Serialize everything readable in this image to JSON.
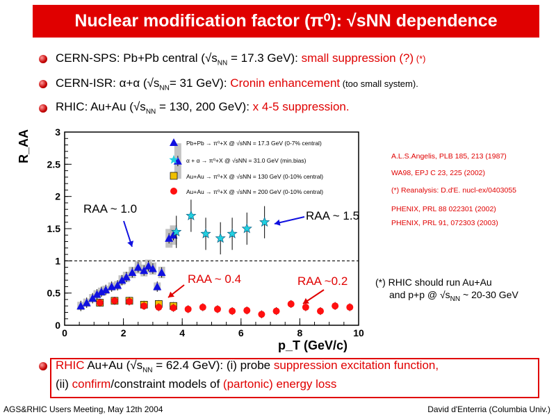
{
  "slide": {
    "title": "Nuclear modification factor (π⁰):  √sNN dependence",
    "bullets": [
      {
        "label": "CERN-SPS",
        "text": ": Pb+Pb central (√s",
        "sub": "NN",
        "text2": " = 17.3 GeV): ",
        "red": "small suppression (?)",
        "tail": " (*)"
      },
      {
        "label": "CERN-ISR",
        "text": ": α+α (√s",
        "sub": "NN",
        "text2": "= 31 GeV): ",
        "red": "Cronin enhancement",
        "tail": " (too small system)."
      },
      {
        "label": "RHIC",
        "text": ": Au+Au (√s",
        "sub": "NN",
        "text2": " = 130, 200 GeV): ",
        "red": "x 4-5 suppression."
      }
    ],
    "refs": [
      "A.L.S.Angelis, PLB 185, 213 (1987)",
      "WA98, EPJ C 23, 225 (2002)",
      "(*) Reanalysis: D.d'E. nucl-ex/0403055",
      "PHENIX, PRL 88 022301 (2002)",
      "PHENIX, PRL 91, 072303  (2003)"
    ],
    "note_line1": "(*) RHIC should run Au+Au",
    "note_line2": "and p+p @ √s",
    "note_sub": "NN",
    "note_line2b": " ~ 20-30 GeV",
    "bottom_line1_a": "RHIC",
    "bottom_line1_b": " Au+Au (√s",
    "bottom_line1_sub": "NN",
    "bottom_line1_c": " = 62.4 GeV): (i) probe ",
    "bottom_line1_d": "suppression excitation function,",
    "bottom_line2_a": "(ii) ",
    "bottom_line2_b": "confirm",
    "bottom_line2_c": "/constraint models of ",
    "bottom_line2_d": "(partonic) energy loss",
    "footer_left": "AGS&RHIC Users Meeting, May 12th 2004",
    "footer_right": "David d'Enterria (Columbia Univ.)"
  },
  "chart_data": {
    "type": "scatter",
    "xlabel": "p_T (GeV/c)",
    "ylabel": "R_AA",
    "xlim": [
      0,
      10
    ],
    "ylim": [
      0,
      3
    ],
    "x_ticks": [
      "0",
      "2",
      "4",
      "6",
      "8",
      "10"
    ],
    "y_ticks": [
      "0",
      "0.5",
      "1",
      "1.5",
      "2",
      "2.5",
      "3"
    ],
    "legend": [
      "Pb+Pb → π⁰+X  @ √sNN = 17.3 GeV (0-7% central)",
      "α + α → π⁰+X  @ √sNN = 31.0 GeV (min.bias)",
      "Au+Au → π⁰+X @ √sNN = 130 GeV (0-10% central)",
      "Au+Au → π⁰+X @ √sNN = 200 GeV (0-10% central)"
    ],
    "annotations": [
      "RAA ~ 1.0",
      "RAA ~ 1.5",
      "RAA ~  0.4",
      "RAA ~0.2"
    ],
    "series": [
      {
        "color": "#1010e0",
        "marker": "triangle",
        "x": [
          0.55,
          0.75,
          0.95,
          1.1,
          1.25,
          1.4,
          1.6,
          1.8,
          1.95,
          2.1,
          2.3,
          2.5,
          2.7,
          2.85,
          3.0,
          3.15,
          3.3,
          3.55,
          3.7,
          3.85
        ],
        "y": [
          0.3,
          0.35,
          0.42,
          0.48,
          0.52,
          0.55,
          0.6,
          0.62,
          0.7,
          0.75,
          0.82,
          0.9,
          0.85,
          0.92,
          0.88,
          0.6,
          0.82,
          1.35,
          1.4,
          2.55
        ]
      },
      {
        "color": "#20d0e0",
        "marker": "star",
        "x": [
          3.8,
          4.3,
          4.8,
          5.3,
          5.7,
          6.2,
          6.8
        ],
        "y": [
          1.45,
          1.7,
          1.42,
          1.35,
          1.42,
          1.5,
          1.6
        ]
      },
      {
        "color": "#f0c000",
        "marker": "square",
        "x": [
          1.2,
          1.7,
          2.2,
          2.7,
          3.2,
          3.7
        ],
        "y": [
          0.35,
          0.38,
          0.38,
          0.32,
          0.33,
          0.3
        ]
      },
      {
        "color": "#ff1010",
        "marker": "circle",
        "x": [
          1.2,
          1.7,
          2.2,
          2.7,
          3.2,
          3.7,
          4.2,
          4.7,
          5.2,
          5.7,
          6.2,
          6.7,
          7.2,
          7.7,
          8.2,
          8.7,
          9.2,
          9.7
        ],
        "y": [
          0.35,
          0.38,
          0.37,
          0.3,
          0.28,
          0.27,
          0.25,
          0.28,
          0.25,
          0.22,
          0.23,
          0.17,
          0.22,
          0.33,
          0.28,
          0.22,
          0.3,
          0.28
        ]
      }
    ]
  }
}
